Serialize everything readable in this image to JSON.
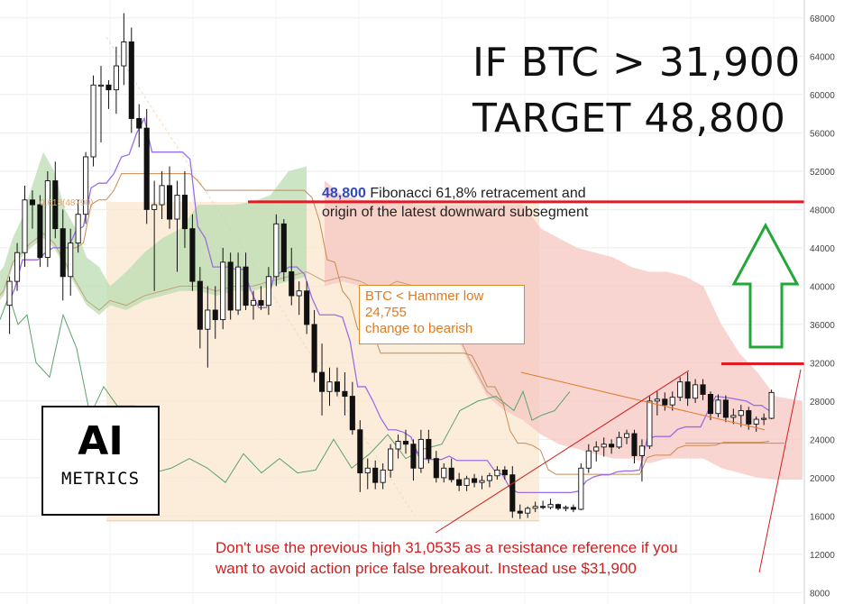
{
  "header": {
    "line1": "IF BTC > 31,900",
    "line2": "TARGET 48,800"
  },
  "annotations": {
    "fib_value": "48,800",
    "fib_text_1": " Fibonacci 61,8% retracement and",
    "fib_text_2": "origin of the latest downward subsegment",
    "fib_small_label": "0.618(48790)",
    "hammer_line1": "BTC < Hammer low",
    "hammer_line2": "24,755",
    "hammer_line3": "change to bearish",
    "note_line1": "Don't use the previous high 31,0535 as a resistance reference if you",
    "note_line2": "want to avoid action price false breakout. Instead use $31,900"
  },
  "logo": {
    "big": "AI",
    "small": "METRICS"
  },
  "colors": {
    "up": "#ffffff",
    "down": "#111111",
    "tenkan": "#9b6ee6",
    "kijun": "#c98a52",
    "chikou": "#5aa36a",
    "cloud_bull": "#b9dcb2",
    "cloud_bear": "#f6c7c2",
    "fib_zone": "#fbe7cf",
    "resistance": "#e01b24",
    "arrow": "#22a83a"
  },
  "chart_data": {
    "type": "candlestick",
    "y_axis": {
      "ticks": [
        "68000",
        "64000",
        "60000",
        "56000",
        "52000",
        "48000",
        "44000",
        "40000",
        "36000",
        "32000",
        "28000",
        "24000",
        "20000",
        "16000",
        "12000",
        "8000"
      ],
      "ylim": [
        7000,
        69500
      ]
    },
    "levels": [
      {
        "value": 48800
      },
      {
        "value": 31900
      }
    ],
    "candles": [
      {
        "o": 38000,
        "h": 41000,
        "l": 35000,
        "c": 40500
      },
      {
        "o": 40500,
        "h": 44500,
        "l": 39500,
        "c": 43500
      },
      {
        "o": 43500,
        "h": 50500,
        "l": 42000,
        "c": 49000
      },
      {
        "o": 49000,
        "h": 50000,
        "l": 46000,
        "c": 48500
      },
      {
        "o": 48500,
        "h": 49500,
        "l": 42000,
        "c": 43000
      },
      {
        "o": 43000,
        "h": 52000,
        "l": 42000,
        "c": 51000
      },
      {
        "o": 51000,
        "h": 53000,
        "l": 45000,
        "c": 46000
      },
      {
        "o": 46000,
        "h": 48000,
        "l": 38500,
        "c": 41000
      },
      {
        "o": 41000,
        "h": 46000,
        "l": 39000,
        "c": 44500
      },
      {
        "o": 44500,
        "h": 49000,
        "l": 43500,
        "c": 47500
      },
      {
        "o": 47500,
        "h": 54000,
        "l": 46500,
        "c": 53500
      },
      {
        "o": 53500,
        "h": 62000,
        "l": 52500,
        "c": 61000
      },
      {
        "o": 61000,
        "h": 63000,
        "l": 55000,
        "c": 61000
      },
      {
        "o": 61000,
        "h": 61500,
        "l": 58500,
        "c": 60500
      },
      {
        "o": 60500,
        "h": 65000,
        "l": 58000,
        "c": 63000
      },
      {
        "o": 63000,
        "h": 68500,
        "l": 61000,
        "c": 65500
      },
      {
        "o": 65500,
        "h": 67000,
        "l": 56000,
        "c": 57500
      },
      {
        "o": 57500,
        "h": 59000,
        "l": 54500,
        "c": 56500
      },
      {
        "o": 56500,
        "h": 58500,
        "l": 46500,
        "c": 48000
      },
      {
        "o": 48000,
        "h": 51000,
        "l": 39500,
        "c": 48500
      },
      {
        "o": 48500,
        "h": 52000,
        "l": 47000,
        "c": 50500
      },
      {
        "o": 50500,
        "h": 52500,
        "l": 46000,
        "c": 47000
      },
      {
        "o": 47000,
        "h": 51000,
        "l": 41500,
        "c": 49500
      },
      {
        "o": 49500,
        "h": 52000,
        "l": 44000,
        "c": 46000
      },
      {
        "o": 46000,
        "h": 47500,
        "l": 39500,
        "c": 40500
      },
      {
        "o": 40500,
        "h": 42000,
        "l": 33500,
        "c": 35500
      },
      {
        "o": 35500,
        "h": 40000,
        "l": 31500,
        "c": 37500
      },
      {
        "o": 37500,
        "h": 40000,
        "l": 34500,
        "c": 36500
      },
      {
        "o": 36500,
        "h": 44000,
        "l": 35500,
        "c": 42500
      },
      {
        "o": 42500,
        "h": 43500,
        "l": 36500,
        "c": 37500
      },
      {
        "o": 37500,
        "h": 43500,
        "l": 37000,
        "c": 42000
      },
      {
        "o": 42000,
        "h": 43500,
        "l": 37500,
        "c": 38000
      },
      {
        "o": 38000,
        "h": 39500,
        "l": 36500,
        "c": 38500
      },
      {
        "o": 38500,
        "h": 40000,
        "l": 37500,
        "c": 38000
      },
      {
        "o": 38000,
        "h": 42000,
        "l": 37000,
        "c": 41000
      },
      {
        "o": 41000,
        "h": 47500,
        "l": 40000,
        "c": 46500
      },
      {
        "o": 46500,
        "h": 47000,
        "l": 40500,
        "c": 41500
      },
      {
        "o": 41500,
        "h": 44000,
        "l": 38000,
        "c": 39000
      },
      {
        "o": 39000,
        "h": 40500,
        "l": 37000,
        "c": 39500
      },
      {
        "o": 39500,
        "h": 40500,
        "l": 35000,
        "c": 36000
      },
      {
        "o": 36000,
        "h": 37500,
        "l": 30000,
        "c": 31000
      },
      {
        "o": 31000,
        "h": 34000,
        "l": 26500,
        "c": 29000
      },
      {
        "o": 29000,
        "h": 31500,
        "l": 27500,
        "c": 30000
      },
      {
        "o": 30000,
        "h": 31500,
        "l": 28500,
        "c": 29000
      },
      {
        "o": 29000,
        "h": 31000,
        "l": 26500,
        "c": 28500
      },
      {
        "o": 28500,
        "h": 30000,
        "l": 24500,
        "c": 25000
      },
      {
        "o": 25000,
        "h": 26000,
        "l": 18500,
        "c": 20500
      },
      {
        "o": 20500,
        "h": 22000,
        "l": 18800,
        "c": 21000
      },
      {
        "o": 21000,
        "h": 21800,
        "l": 18800,
        "c": 19500
      },
      {
        "o": 19500,
        "h": 21500,
        "l": 18800,
        "c": 20800
      },
      {
        "o": 20800,
        "h": 23500,
        "l": 20000,
        "c": 23000
      },
      {
        "o": 23000,
        "h": 24500,
        "l": 22000,
        "c": 23800
      },
      {
        "o": 23800,
        "h": 25000,
        "l": 22500,
        "c": 23500
      },
      {
        "o": 23500,
        "h": 24000,
        "l": 19700,
        "c": 21000
      },
      {
        "o": 21000,
        "h": 25000,
        "l": 20500,
        "c": 24000
      },
      {
        "o": 24000,
        "h": 25000,
        "l": 21500,
        "c": 22000
      },
      {
        "o": 22000,
        "h": 22800,
        "l": 19500,
        "c": 20000
      },
      {
        "o": 20000,
        "h": 21500,
        "l": 19500,
        "c": 21000
      },
      {
        "o": 21000,
        "h": 22000,
        "l": 19500,
        "c": 19800
      },
      {
        "o": 19800,
        "h": 20500,
        "l": 18600,
        "c": 19200
      },
      {
        "o": 19200,
        "h": 20200,
        "l": 18600,
        "c": 19900
      },
      {
        "o": 19900,
        "h": 20400,
        "l": 19000,
        "c": 19500
      },
      {
        "o": 19500,
        "h": 20200,
        "l": 18800,
        "c": 19700
      },
      {
        "o": 19700,
        "h": 20500,
        "l": 19000,
        "c": 20200
      },
      {
        "o": 20200,
        "h": 21200,
        "l": 19800,
        "c": 20800
      },
      {
        "o": 20800,
        "h": 21200,
        "l": 19800,
        "c": 20300
      },
      {
        "o": 20300,
        "h": 21200,
        "l": 15800,
        "c": 16500
      },
      {
        "o": 16500,
        "h": 17200,
        "l": 15700,
        "c": 16300
      },
      {
        "o": 16300,
        "h": 17000,
        "l": 15800,
        "c": 16800
      },
      {
        "o": 16800,
        "h": 17500,
        "l": 16400,
        "c": 17000
      },
      {
        "o": 17000,
        "h": 17600,
        "l": 16700,
        "c": 16900
      },
      {
        "o": 16900,
        "h": 17800,
        "l": 16700,
        "c": 17200
      },
      {
        "o": 17200,
        "h": 17300,
        "l": 16600,
        "c": 16800
      },
      {
        "o": 16800,
        "h": 17100,
        "l": 16500,
        "c": 16900
      },
      {
        "o": 16900,
        "h": 17200,
        "l": 16400,
        "c": 16700
      },
      {
        "o": 16700,
        "h": 21500,
        "l": 16600,
        "c": 21000
      },
      {
        "o": 21000,
        "h": 23500,
        "l": 20500,
        "c": 22800
      },
      {
        "o": 22800,
        "h": 23800,
        "l": 21700,
        "c": 23200
      },
      {
        "o": 23200,
        "h": 24200,
        "l": 22200,
        "c": 23500
      },
      {
        "o": 23500,
        "h": 24000,
        "l": 22500,
        "c": 23200
      },
      {
        "o": 23200,
        "h": 24800,
        "l": 23000,
        "c": 24200
      },
      {
        "o": 24200,
        "h": 25000,
        "l": 23500,
        "c": 24600
      },
      {
        "o": 24600,
        "h": 25000,
        "l": 21500,
        "c": 22300
      },
      {
        "o": 22300,
        "h": 24000,
        "l": 19600,
        "c": 23300
      },
      {
        "o": 23300,
        "h": 28500,
        "l": 23000,
        "c": 28000
      },
      {
        "o": 28000,
        "h": 29000,
        "l": 26500,
        "c": 28200
      },
      {
        "o": 28200,
        "h": 28900,
        "l": 27000,
        "c": 27600
      },
      {
        "o": 27600,
        "h": 29000,
        "l": 27000,
        "c": 28400
      },
      {
        "o": 28400,
        "h": 30500,
        "l": 28000,
        "c": 30000
      },
      {
        "o": 30000,
        "h": 31000,
        "l": 27500,
        "c": 28300
      },
      {
        "o": 28300,
        "h": 30300,
        "l": 27800,
        "c": 29700
      },
      {
        "o": 29700,
        "h": 30300,
        "l": 28100,
        "c": 28700
      },
      {
        "o": 28700,
        "h": 29000,
        "l": 26000,
        "c": 26700
      },
      {
        "o": 26700,
        "h": 28700,
        "l": 26300,
        "c": 28100
      },
      {
        "o": 28100,
        "h": 28600,
        "l": 25800,
        "c": 26300
      },
      {
        "o": 26300,
        "h": 27200,
        "l": 25600,
        "c": 26500
      },
      {
        "o": 26500,
        "h": 27600,
        "l": 25300,
        "c": 27000
      },
      {
        "o": 27000,
        "h": 27400,
        "l": 25000,
        "c": 25600
      },
      {
        "o": 25600,
        "h": 26400,
        "l": 24800,
        "c": 26100
      },
      {
        "o": 26100,
        "h": 26700,
        "l": 25500,
        "c": 26200
      },
      {
        "o": 26200,
        "h": 29200,
        "l": 26100,
        "c": 28900
      }
    ]
  }
}
